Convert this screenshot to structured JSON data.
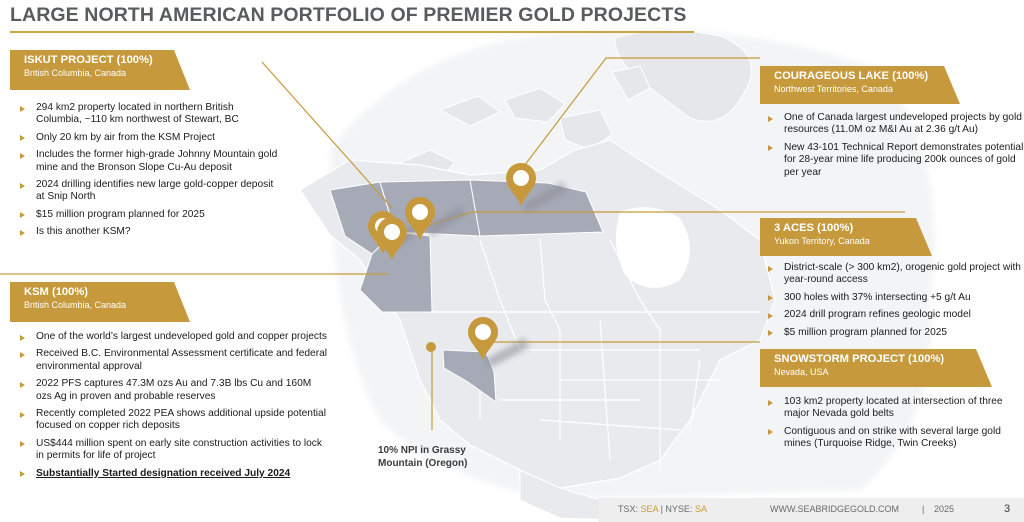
{
  "title": "LARGE NORTH AMERICAN PORTFOLIO OF PREMIER GOLD PROJECTS",
  "colors": {
    "gold": "#c69a3c",
    "highlight_region": "#a6aab6",
    "map_land": "#e9eaee",
    "title_gray": "#5a5b5d"
  },
  "iskut": {
    "name": "ISKUT PROJECT (100%)",
    "location": "British Columbia, Canada",
    "bullets": [
      "294 km2 property located in northern British Columbia, ~110 km northwest of Stewart, BC",
      "Only 20 km by air from the KSM Project",
      "Includes the former high-grade Johnny Mountain gold mine and the Bronson Slope Cu-Au deposit",
      "2024 drilling identifies new large gold-copper deposit at Snip North",
      "$15 million program planned for 2025",
      "Is this another KSM?"
    ]
  },
  "ksm": {
    "name": "KSM (100%)",
    "location": "British Columbia, Canada",
    "bullets": [
      "One of the world’s largest undeveloped gold and copper projects",
      "Received B.C. Environmental Assessment certificate and federal environmental approval",
      "2022 PFS captures 47.3M ozs Au and 7.3B lbs Cu and 160M ozs Ag in proven and probable reserves",
      "Recently completed 2022 PEA shows additional upside potential focused on copper rich deposits",
      "US$444 million spent on early site construction activities to lock in permits for life of project"
    ],
    "bold_bullet": "Substantially Started designation received July 2024"
  },
  "courageous_lake": {
    "name": "COURAGEOUS LAKE (100%)",
    "location": "Northwest Territories, Canada",
    "bullets": [
      "One of Canada largest undeveloped projects by gold resources (11.0M oz M&I Au at 2.36 g/t Au)",
      "New 43-101 Technical Report demonstrates potential for 28-year mine life producing 200k ounces of gold per year"
    ]
  },
  "three_aces": {
    "name": "3 ACES (100%)",
    "location": "Yukon Territory, Canada",
    "bullets": [
      "District-scale (> 300 km2), orogenic gold project with year-round access",
      "300 holes with 37% intersecting +5 g/t Au",
      "2024 drill program refines geologic model",
      "$5 million program planned for 2025"
    ]
  },
  "snowstorm": {
    "name": "SNOWSTORM PROJECT (100%)",
    "location": "Nevada, USA",
    "bullets": [
      "103 km2 property located at intersection of three major Nevada gold belts",
      "Contiguous and on strike with several large gold mines (Turquoise Ridge, Twin Creeks)"
    ]
  },
  "npi_label": "10% NPI in Grassy Mountain (Oregon)",
  "footer": {
    "tsx_label": "TSX:",
    "tsx_ticker": "SEA",
    "separator": "|",
    "nyse_label": "NYSE:",
    "nyse_ticker": "SA",
    "website": "WWW.SEABRIDGEGOLD.COM",
    "year_separator": "|",
    "year": "2025",
    "page_number": "3"
  },
  "map_markers": [
    {
      "id": "courageous-lake",
      "icon": "map-pin-icon"
    },
    {
      "id": "three-aces",
      "icon": "map-pin-icon"
    },
    {
      "id": "iskut",
      "icon": "map-pin-icon"
    },
    {
      "id": "ksm",
      "icon": "map-pin-icon"
    },
    {
      "id": "snowstorm",
      "icon": "map-pin-icon"
    },
    {
      "id": "grassy-mountain",
      "icon": "dot-icon"
    }
  ]
}
